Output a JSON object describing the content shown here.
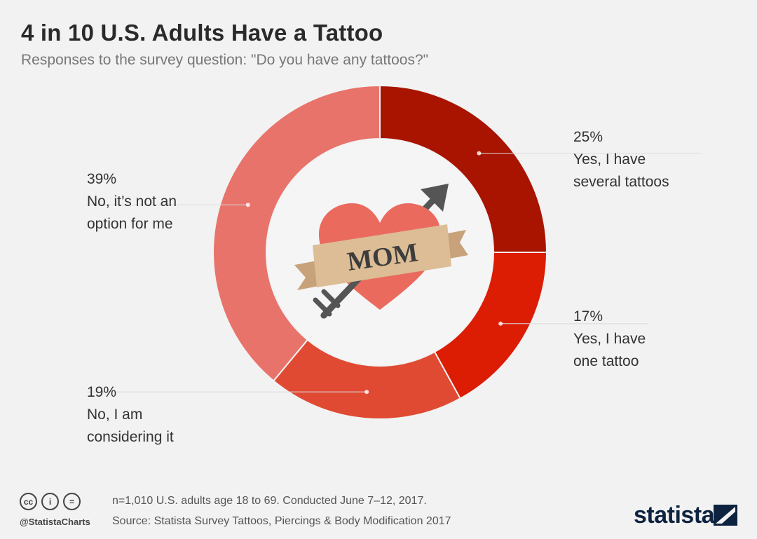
{
  "title": "4 in 10 U.S. Adults Have a Tattoo",
  "subtitle": "Responses to the survey question: \"Do you have any tattoos?\"",
  "center_graphic": {
    "banner_text": "MOM",
    "icon": "heart-arrow-banner"
  },
  "chart_data": {
    "type": "pie",
    "donut": true,
    "title": "4 in 10 U.S. Adults Have a Tattoo",
    "subtitle": "Responses to the survey question: \"Do you have any tattoos?\"",
    "slices": [
      {
        "pct_label": "25%",
        "value": 25,
        "label_lines": [
          "Yes, I have",
          "several tattoos"
        ],
        "color": "#a81400"
      },
      {
        "pct_label": "17%",
        "value": 17,
        "label_lines": [
          "Yes, I have",
          "one tattoo"
        ],
        "color": "#dc1c03"
      },
      {
        "pct_label": "19%",
        "value": 19,
        "label_lines": [
          "No, I am",
          "considering it"
        ],
        "color": "#e04a33"
      },
      {
        "pct_label": "39%",
        "value": 39,
        "label_lines": [
          "No, it’s not an",
          "option for me"
        ],
        "color": "#e8736a"
      }
    ]
  },
  "footer": {
    "note": "n=1,010 U.S. adults age 18 to 69. Conducted June 7–12, 2017.",
    "source": "Source: Statista Survey Tattoos, Piercings & Body Modification 2017",
    "handle": "@StatistaCharts",
    "brand": "statista",
    "license_icons": [
      "cc-icon",
      "attribution-icon",
      "no-derivatives-icon"
    ]
  }
}
